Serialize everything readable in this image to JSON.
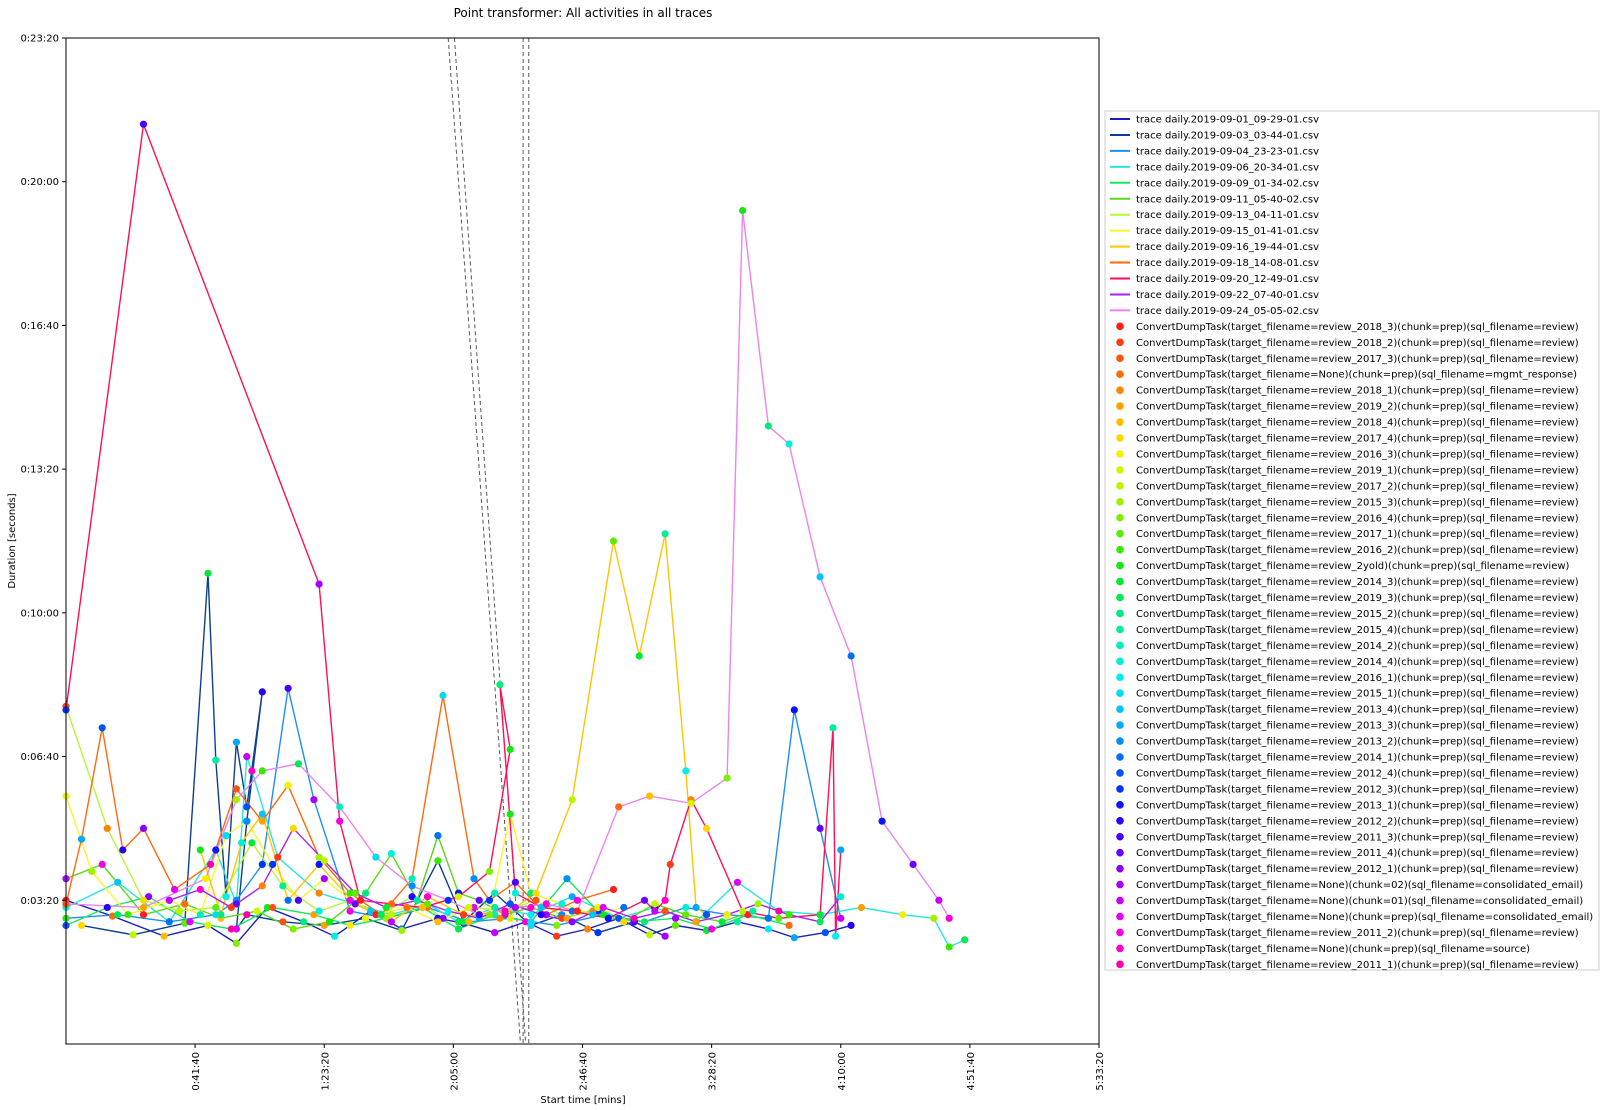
{
  "chart_data": {
    "type": "line",
    "title": "Point transformer: All activities in all traces",
    "xlabel": "Start time [mins]",
    "ylabel": "Duration [seconds]",
    "xlim": [
      0,
      20000
    ],
    "ylim": [
      0,
      1400
    ],
    "x_ticks": [
      {
        "value": 2500,
        "label": "0:41:40"
      },
      {
        "value": 5000,
        "label": "1:23:20"
      },
      {
        "value": 7500,
        "label": "2:05:00"
      },
      {
        "value": 10000,
        "label": "2:46:40"
      },
      {
        "value": 12500,
        "label": "3:28:20"
      },
      {
        "value": 15000,
        "label": "4:10:00"
      },
      {
        "value": 17500,
        "label": "4:51:40"
      },
      {
        "value": 20000,
        "label": "5:33:20"
      }
    ],
    "y_ticks": [
      {
        "value": 200,
        "label": "0:03:20"
      },
      {
        "value": 400,
        "label": "0:06:40"
      },
      {
        "value": 600,
        "label": "0:10:00"
      },
      {
        "value": 800,
        "label": "0:13:20"
      },
      {
        "value": 1000,
        "label": "0:16:40"
      },
      {
        "value": 1200,
        "label": "0:20:00"
      },
      {
        "value": 1400,
        "label": "0:23:20"
      }
    ],
    "grid": false,
    "legend_position": "right",
    "reference_lines": [
      {
        "x1": 7400,
        "y1": 1400,
        "x2": 8800,
        "y2": 0
      },
      {
        "x1": 7520,
        "y1": 1400,
        "x2": 8900,
        "y2": 0
      },
      {
        "x1": 8850,
        "y1": 1400,
        "x2": 8850,
        "y2": 0
      },
      {
        "x1": 8960,
        "y1": 1400,
        "x2": 8960,
        "y2": 0
      }
    ],
    "series": [
      {
        "name": "trace daily.2019-09-01_09-29-01.csv",
        "color": "#1f1fb4",
        "x": [
          0,
          900,
          1900,
          2750,
          3300,
          3900,
          4600,
          5200,
          5900,
          6500,
          7200,
          7700,
          8300,
          8900,
          9500,
          10100,
          10700,
          11300,
          11800,
          12400,
          13000,
          13600,
          14100,
          14700,
          15200
        ],
        "y": [
          200,
          178,
          150,
          165,
          140,
          190,
          170,
          150,
          185,
          160,
          175,
          168,
          155,
          170,
          150,
          160,
          175,
          152,
          165,
          158,
          170,
          160,
          148,
          155,
          165
        ]
      },
      {
        "name": "trace daily.2019-09-03_03-44-01.csv",
        "color": "#0d3f8f",
        "x": [
          300,
          1300,
          2300,
          2750,
          2900,
          3100,
          3300,
          3500,
          3800,
          3500,
          3300,
          3500,
          4200,
          5000,
          5800,
          6500,
          7200,
          7700,
          8300,
          9000,
          9600,
          10300,
          11000,
          11600
        ],
        "y": [
          165,
          152,
          168,
          655,
          395,
          205,
          420,
          330,
          490,
          310,
          160,
          180,
          170,
          165,
          175,
          158,
          255,
          170,
          210,
          165,
          180,
          155,
          170,
          150
        ]
      },
      {
        "name": "trace daily.2019-09-04_23-23-01.csv",
        "color": "#1c8ff2",
        "x": [
          0,
          1000,
          2000,
          2900,
          3300,
          3800,
          4300,
          4800,
          5500,
          6200,
          7000,
          7800,
          8600,
          9500,
          10400,
          11200,
          12000,
          12800,
          13600,
          14100,
          14600,
          15000
        ],
        "y": [
          175,
          180,
          170,
          180,
          200,
          250,
          495,
          340,
          185,
          175,
          190,
          170,
          175,
          165,
          180,
          170,
          190,
          180,
          175,
          465,
          300,
          175
        ]
      },
      {
        "name": "trace daily.2019-09-06_20-34-01.csv",
        "color": "#27e6dd",
        "x": [
          0,
          1000,
          2000,
          2900,
          3300,
          3500,
          3600,
          4100,
          4900,
          5600,
          6300,
          7000,
          7600,
          8300,
          9000,
          9800,
          10700,
          11400,
          12200,
          13000,
          13800,
          14600,
          15400,
          16200,
          16800,
          17100,
          17400
        ],
        "y": [
          190,
          225,
          170,
          270,
          195,
          400,
          380,
          260,
          210,
          195,
          180,
          195,
          170,
          190,
          180,
          205,
          175,
          190,
          170,
          225,
          185,
          180,
          190,
          180,
          175,
          135,
          145
        ]
      },
      {
        "name": "trace daily.2019-09-09_01-34-02.csv",
        "color": "#17e85c",
        "x": [
          0,
          800,
          1600,
          2400,
          3200,
          4000,
          4800,
          5500,
          6200,
          6900,
          7600,
          8300,
          9000,
          9700,
          10300,
          11000,
          11800,
          12500,
          13200,
          14000
        ],
        "y": [
          165,
          190,
          205,
          170,
          160,
          190,
          180,
          165,
          175,
          190,
          160,
          180,
          170,
          230,
          185,
          170,
          175,
          160,
          180,
          165
        ]
      },
      {
        "name": "trace daily.2019-09-11_05-40-02.csv",
        "color": "#5bd91a",
        "x": [
          0,
          700,
          1500,
          2300,
          3000,
          3700,
          4400,
          5100,
          5800,
          6300,
          6800,
          7200,
          7600,
          8000,
          8500,
          9000,
          9600,
          10200,
          10800,
          11400,
          12000,
          12700,
          13300
        ],
        "y": [
          230,
          250,
          180,
          195,
          175,
          185,
          160,
          170,
          210,
          265,
          200,
          290,
          210,
          200,
          180,
          190,
          175,
          185,
          170,
          195,
          180,
          170,
          185
        ]
      },
      {
        "name": "trace daily.2019-09-13_04-11-01.csv",
        "color": "#b9f53a",
        "x": [
          0,
          800,
          1500,
          2200,
          2900,
          3600,
          4200,
          4900,
          5500,
          6100,
          6700,
          7300,
          7900,
          8500,
          9100,
          9700,
          10300
        ],
        "y": [
          470,
          300,
          200,
          185,
          190,
          280,
          220,
          185,
          200,
          180,
          205,
          175,
          190,
          185,
          200,
          175,
          190
        ]
      },
      {
        "name": "trace daily.2019-09-15_01-41-01.csv",
        "color": "#fff32b",
        "x": [
          0,
          500,
          1200,
          2000,
          2600,
          3100,
          3500,
          4000,
          4500,
          5000,
          5500,
          6000,
          6600,
          7200,
          7800,
          8200,
          8600,
          9000,
          9600,
          10200,
          10800
        ],
        "y": [
          345,
          240,
          180,
          200,
          180,
          290,
          310,
          250,
          200,
          230,
          200,
          180,
          190,
          170,
          190,
          180,
          320,
          210,
          195,
          180,
          190
        ]
      },
      {
        "name": "trace daily.2019-09-16_19-44-01.csv",
        "color": "#ffc400",
        "x": [
          2600,
          3000,
          3400,
          3800,
          4300,
          4900,
          5600,
          6300,
          7000,
          7700,
          8400,
          9100,
          9800,
          10600,
          11100,
          11600,
          12000,
          12200,
          12400
        ],
        "y": [
          270,
          180,
          280,
          320,
          200,
          250,
          195,
          170,
          205,
          180,
          175,
          210,
          340,
          700,
          540,
          710,
          380,
          190,
          180
        ]
      },
      {
        "name": "trace daily.2019-09-18_14-08-01.csv",
        "color": "#ff6a0b",
        "x": [
          0,
          300,
          700,
          1100,
          1500,
          2100,
          2800,
          3300,
          3800,
          4300,
          4900,
          5500,
          6100,
          6700,
          7300,
          7900,
          8200,
          8700,
          9300,
          9900,
          10600
        ],
        "y": [
          195,
          285,
          440,
          270,
          300,
          215,
          250,
          355,
          310,
          360,
          260,
          210,
          180,
          230,
          485,
          230,
          200,
          225,
          180,
          200,
          215
        ]
      },
      {
        "name": "trace daily.2019-09-20_12-49-01.csv",
        "color": "#ff0f58",
        "x": [
          0,
          1500,
          4900,
          5300,
          5700,
          6300,
          6900,
          7600,
          8200,
          8600,
          8400,
          8700,
          9200,
          9800,
          10500,
          11200,
          11400,
          11600,
          11700,
          12100,
          12400,
          13100,
          13800,
          14600,
          14850,
          14900,
          15000
        ],
        "y": [
          465,
          1280,
          640,
          310,
          200,
          195,
          190,
          205,
          240,
          410,
          500,
          210,
          190,
          185,
          175,
          200,
          185,
          200,
          250,
          340,
          300,
          185,
          175,
          180,
          440,
          150,
          270
        ]
      },
      {
        "name": "trace daily.2019-09-22_07-40-01.csv",
        "color": "#a822f0",
        "x": [
          2000,
          2600,
          3200,
          3800,
          4400,
          5000,
          5600,
          6200,
          6800,
          7400,
          8000,
          8600,
          9200,
          9800,
          10400,
          11000,
          11600,
          12200,
          12800,
          13400,
          14000,
          14600,
          15000
        ],
        "y": [
          200,
          215,
          190,
          220,
          300,
          255,
          210,
          190,
          200,
          185,
          175,
          195,
          180,
          170,
          190,
          175,
          185,
          170,
          180,
          195,
          180,
          170,
          205
        ]
      },
      {
        "name": "trace daily.2019-09-24_05-05-02.csv",
        "color": "#ee82ee",
        "x": [
          0,
          1500,
          2700,
          3300,
          3800,
          4500,
          5300,
          6000,
          6700,
          7400,
          8000,
          8700,
          9300,
          9900,
          10700,
          11300,
          12100,
          12800,
          13100,
          13600,
          14000,
          14600,
          15200,
          15800,
          16400,
          16900,
          17100
        ],
        "y": [
          195,
          190,
          230,
          340,
          380,
          390,
          330,
          260,
          220,
          200,
          180,
          190,
          195,
          185,
          330,
          345,
          335,
          370,
          1160,
          860,
          835,
          650,
          540,
          310,
          250,
          200,
          175
        ]
      }
    ],
    "activities": [
      {
        "label": "ConvertDumpTask(target_filename=review_2018_3)(chunk=prep)(sql_filename=review)",
        "color": "#ff1e1e"
      },
      {
        "label": "ConvertDumpTask(target_filename=review_2018_2)(chunk=prep)(sql_filename=review)",
        "color": "#ff3c17"
      },
      {
        "label": "ConvertDumpTask(target_filename=review_2017_3)(chunk=prep)(sql_filename=review)",
        "color": "#ff5212"
      },
      {
        "label": "ConvertDumpTask(target_filename=None)(chunk=prep)(sql_filename=mgmt_response)",
        "color": "#ff6a0b"
      },
      {
        "label": "ConvertDumpTask(target_filename=review_2018_1)(chunk=prep)(sql_filename=review)",
        "color": "#ff8400"
      },
      {
        "label": "ConvertDumpTask(target_filename=review_2019_2)(chunk=prep)(sql_filename=review)",
        "color": "#ffa000"
      },
      {
        "label": "ConvertDumpTask(target_filename=review_2018_4)(chunk=prep)(sql_filename=review)",
        "color": "#ffbc00"
      },
      {
        "label": "ConvertDumpTask(target_filename=review_2017_4)(chunk=prep)(sql_filename=review)",
        "color": "#ffd700"
      },
      {
        "label": "ConvertDumpTask(target_filename=review_2016_3)(chunk=prep)(sql_filename=review)",
        "color": "#f2f200"
      },
      {
        "label": "ConvertDumpTask(target_filename=review_2019_1)(chunk=prep)(sql_filename=review)",
        "color": "#d8f500"
      },
      {
        "label": "ConvertDumpTask(target_filename=review_2017_2)(chunk=prep)(sql_filename=review)",
        "color": "#bdf400"
      },
      {
        "label": "ConvertDumpTask(target_filename=review_2015_3)(chunk=prep)(sql_filename=review)",
        "color": "#a0f000"
      },
      {
        "label": "ConvertDumpTask(target_filename=review_2016_4)(chunk=prep)(sql_filename=review)",
        "color": "#80ee00"
      },
      {
        "label": "ConvertDumpTask(target_filename=review_2017_1)(chunk=prep)(sql_filename=review)",
        "color": "#5cec00"
      },
      {
        "label": "ConvertDumpTask(target_filename=review_2016_2)(chunk=prep)(sql_filename=review)",
        "color": "#34ea00"
      },
      {
        "label": "ConvertDumpTask(target_filename=review_2yold)(chunk=prep)(sql_filename=review)",
        "color": "#10ea10"
      },
      {
        "label": "ConvertDumpTask(target_filename=review_2014_3)(chunk=prep)(sql_filename=review)",
        "color": "#00ea34"
      },
      {
        "label": "ConvertDumpTask(target_filename=review_2019_3)(chunk=prep)(sql_filename=review)",
        "color": "#00ea58"
      },
      {
        "label": "ConvertDumpTask(target_filename=review_2015_2)(chunk=prep)(sql_filename=review)",
        "color": "#00eb7c"
      },
      {
        "label": "ConvertDumpTask(target_filename=review_2015_4)(chunk=prep)(sql_filename=review)",
        "color": "#00ec9e"
      },
      {
        "label": "ConvertDumpTask(target_filename=review_2014_2)(chunk=prep)(sql_filename=review)",
        "color": "#00eebe"
      },
      {
        "label": "ConvertDumpTask(target_filename=review_2014_4)(chunk=prep)(sql_filename=review)",
        "color": "#00efd8"
      },
      {
        "label": "ConvertDumpTask(target_filename=review_2016_1)(chunk=prep)(sql_filename=review)",
        "color": "#00eeee"
      },
      {
        "label": "ConvertDumpTask(target_filename=review_2015_1)(chunk=prep)(sql_filename=review)",
        "color": "#00dcf2"
      },
      {
        "label": "ConvertDumpTask(target_filename=review_2013_4)(chunk=prep)(sql_filename=review)",
        "color": "#00c4f4"
      },
      {
        "label": "ConvertDumpTask(target_filename=review_2013_3)(chunk=prep)(sql_filename=review)",
        "color": "#00aaf6"
      },
      {
        "label": "ConvertDumpTask(target_filename=review_2013_2)(chunk=prep)(sql_filename=review)",
        "color": "#008ef8"
      },
      {
        "label": "ConvertDumpTask(target_filename=review_2014_1)(chunk=prep)(sql_filename=review)",
        "color": "#0070fa"
      },
      {
        "label": "ConvertDumpTask(target_filename=review_2012_4)(chunk=prep)(sql_filename=review)",
        "color": "#0052fc"
      },
      {
        "label": "ConvertDumpTask(target_filename=review_2012_3)(chunk=prep)(sql_filename=review)",
        "color": "#0034fd"
      },
      {
        "label": "ConvertDumpTask(target_filename=review_2013_1)(chunk=prep)(sql_filename=review)",
        "color": "#0a14fe"
      },
      {
        "label": "ConvertDumpTask(target_filename=review_2012_2)(chunk=prep)(sql_filename=review)",
        "color": "#2800ff"
      },
      {
        "label": "ConvertDumpTask(target_filename=review_2011_3)(chunk=prep)(sql_filename=review)",
        "color": "#4800ff"
      },
      {
        "label": "ConvertDumpTask(target_filename=review_2011_4)(chunk=prep)(sql_filename=review)",
        "color": "#6800ff"
      },
      {
        "label": "ConvertDumpTask(target_filename=review_2012_1)(chunk=prep)(sql_filename=review)",
        "color": "#8800ff"
      },
      {
        "label": "ConvertDumpTask(target_filename=None)(chunk=02)(sql_filename=consolidated_email)",
        "color": "#a600ff"
      },
      {
        "label": "ConvertDumpTask(target_filename=None)(chunk=01)(sql_filename=consolidated_email)",
        "color": "#c400ff"
      },
      {
        "label": "ConvertDumpTask(target_filename=None)(chunk=prep)(sql_filename=consolidated_email)",
        "color": "#e000ff"
      },
      {
        "label": "ConvertDumpTask(target_filename=review_2011_2)(chunk=prep)(sql_filename=review)",
        "color": "#f500e6"
      },
      {
        "label": "ConvertDumpTask(target_filename=None)(chunk=prep)(sql_filename=source)",
        "color": "#fc00c8"
      },
      {
        "label": "ConvertDumpTask(target_filename=review_2011_1)(chunk=prep)(sql_filename=review)",
        "color": "#ff00a8"
      }
    ]
  }
}
